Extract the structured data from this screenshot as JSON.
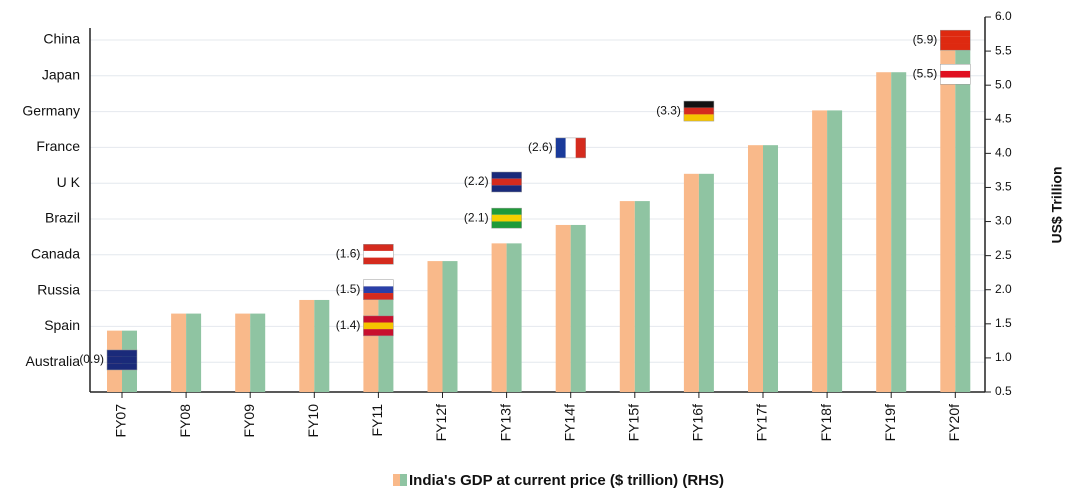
{
  "chart_data": {
    "type": "bar",
    "categories": [
      "FY07",
      "FY08",
      "FY09",
      "FY10",
      "FY11",
      "FY12f",
      "FY13f",
      "FY14f",
      "FY15f",
      "FY16f",
      "FY17f",
      "FY18f",
      "FY19f",
      "FY20f"
    ],
    "series": [
      {
        "name": "India's GDP at current price ($ trillion) (RHS)",
        "colors": [
          "#f9b98a",
          "#8fc4a2"
        ],
        "values": [
          1.4,
          1.65,
          1.65,
          1.85,
          2.1,
          2.42,
          2.68,
          2.95,
          3.3,
          3.7,
          4.12,
          4.63,
          5.19,
          5.6
        ],
        "axis": "y2"
      }
    ],
    "y2lim": [
      0.5,
      6.0
    ],
    "y2ticks": [
      0.5,
      {
        "value": 1.0,
        "label": "1.0"
      },
      1.5,
      {
        "value": 2.0,
        "label": "2.0"
      },
      2.5,
      {
        "value": 3.0,
        "label": "3.0"
      },
      3.5,
      {
        "value": 4.0,
        "label": "4.0"
      },
      4.5,
      {
        "value": 5.0,
        "label": "5.0"
      },
      5.5,
      {
        "value": 6.0,
        "label": "6.0"
      }
    ],
    "y2label": "US$ Trillion",
    "left_labels": [
      "China",
      "Japan",
      "Germany",
      "France",
      "U K",
      "Brazil",
      "Canada",
      "Russia",
      "Spain",
      "Australia"
    ],
    "annotations": [
      {
        "text": "(0.9)",
        "x": "FY07",
        "y": 0.97,
        "colors": [
          "#1a2a7a",
          "#1a2a7a",
          "#1a2a7a"
        ]
      },
      {
        "text": "(1.4)",
        "x": "FY11",
        "y": 1.47,
        "colors": [
          "#c8102e",
          "#f5c400",
          "#c8102e"
        ]
      },
      {
        "text": "(1.5)",
        "x": "FY11",
        "y": 2.0,
        "colors": [
          "#ffffff",
          "#2a3fa8",
          "#d52b1e"
        ]
      },
      {
        "text": "(1.6)",
        "x": "FY11",
        "y": 2.52,
        "colors": [
          "#d52b1e",
          "#ffffff",
          "#d52b1e"
        ]
      },
      {
        "text": "(2.1)",
        "x": "FY13f",
        "y": 3.05,
        "colors": [
          "#1f9a3a",
          "#f5d000",
          "#1f9a3a"
        ]
      },
      {
        "text": "(2.2)",
        "x": "FY13f",
        "y": 3.58,
        "colors": [
          "#1a2a7a",
          "#d52b1e",
          "#1a2a7a"
        ]
      },
      {
        "text": "(2.6)",
        "x": "FY14f",
        "y": 4.08,
        "colors": [
          "#1a3a9a",
          "#ffffff",
          "#d52b1e"
        ]
      },
      {
        "text": "(3.3)",
        "x": "FY16f",
        "y": 4.62,
        "colors": [
          "#111111",
          "#d52b1e",
          "#f5c400"
        ]
      },
      {
        "text": "(5.5)",
        "x": "FY20f",
        "y": 5.16,
        "colors": [
          "#ffffff",
          "#e01020",
          "#ffffff"
        ]
      },
      {
        "text": "(5.9)",
        "x": "FY20f",
        "y": 5.66,
        "colors": [
          "#de2910",
          "#de2910",
          "#de2910"
        ]
      }
    ]
  }
}
